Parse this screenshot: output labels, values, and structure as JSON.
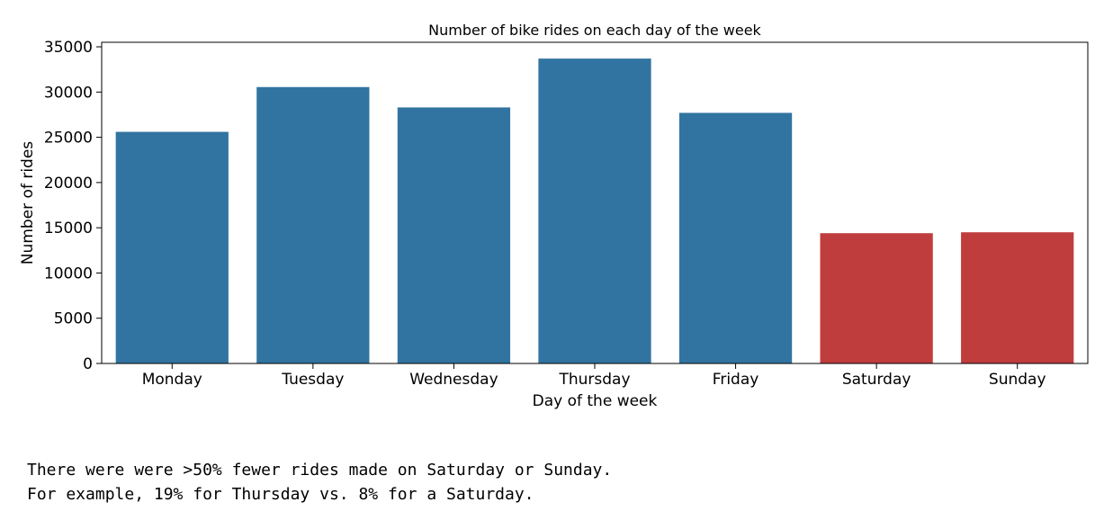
{
  "chart_data": {
    "type": "bar",
    "title": "Number of bike rides on each day of the week",
    "xlabel": "Day of the week",
    "ylabel": "Number of rides",
    "categories": [
      "Monday",
      "Tuesday",
      "Wednesday",
      "Thursday",
      "Friday",
      "Saturday",
      "Sunday"
    ],
    "values": [
      25600,
      30550,
      28300,
      33700,
      27700,
      14400,
      14500
    ],
    "colors": [
      "#3274a1",
      "#3274a1",
      "#3274a1",
      "#3274a1",
      "#3274a1",
      "#c03d3e",
      "#c03d3e"
    ],
    "ylim": [
      0,
      35500
    ],
    "yticks": [
      0,
      5000,
      10000,
      15000,
      20000,
      25000,
      30000,
      35000
    ],
    "grid": false,
    "legend": false
  },
  "output": {
    "lines": [
      "There were were >50% fewer rides made on Saturday or Sunday.",
      "For example, 19% for Thursday vs. 8% for a Saturday."
    ]
  }
}
